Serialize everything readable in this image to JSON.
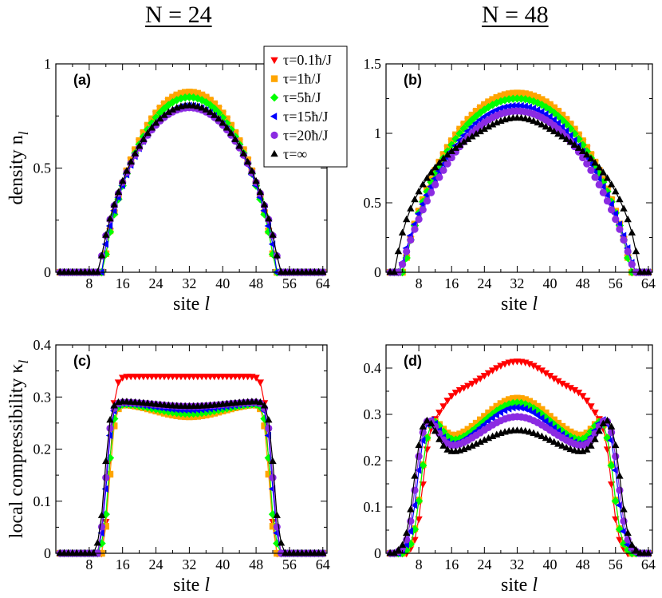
{
  "headers": {
    "left": "N = 24",
    "right": "N = 48"
  },
  "colors": {
    "tau01": "#ff0000",
    "tau1": "#ffa500",
    "tau5": "#00ff00",
    "tau15": "#0000ff",
    "tau20": "#8b2be2",
    "tauinf": "#000000"
  },
  "legend": [
    {
      "key": "tau01",
      "label": "τ=0.1ħ/J",
      "marker": "tri-down"
    },
    {
      "key": "tau1",
      "label": "τ=1ħ/J",
      "marker": "square"
    },
    {
      "key": "tau5",
      "label": "τ=5ħ/J",
      "marker": "diamond"
    },
    {
      "key": "tau15",
      "label": "τ=15ħ/J",
      "marker": "tri-left"
    },
    {
      "key": "tau20",
      "label": "τ=20ħ/J",
      "marker": "circle"
    },
    {
      "key": "tauinf",
      "label": "τ=∞",
      "marker": "tri-up"
    }
  ],
  "chart_data": [
    {
      "id": "a",
      "panel_label": "(a)",
      "type": "line",
      "xlabel": "site",
      "xlabel_var": "l",
      "ylabel": "density n",
      "ylabel_sub": "l",
      "xlim": [
        0,
        65
      ],
      "ylim": [
        0,
        1
      ],
      "xticks": [
        8,
        16,
        24,
        32,
        40,
        48,
        56,
        64
      ],
      "yticks": [
        0,
        0.5,
        1
      ],
      "ytick_labels": [
        "0",
        "0.5",
        "1"
      ],
      "series": [
        {
          "key": "tau01",
          "model": "flat",
          "x0": 32,
          "w": 20.5,
          "peak": 0.86,
          "power": 1.0
        },
        {
          "key": "tau1",
          "model": "flat",
          "x0": 32,
          "w": 20.5,
          "peak": 0.865,
          "power": 1.0
        },
        {
          "key": "tau5",
          "model": "flat",
          "x0": 32,
          "w": 20.5,
          "peak": 0.84,
          "power": 1.0
        },
        {
          "key": "tau15",
          "model": "flat",
          "x0": 32,
          "w": 21.0,
          "peak": 0.8,
          "power": 1.0
        },
        {
          "key": "tau20",
          "model": "flat",
          "x0": 32,
          "w": 21.5,
          "peak": 0.79,
          "power": 1.0
        },
        {
          "key": "tauinf",
          "model": "flat",
          "x0": 32,
          "w": 21.5,
          "peak": 0.8,
          "power": 1.0
        }
      ]
    },
    {
      "id": "b",
      "panel_label": "(b)",
      "type": "line",
      "xlabel": "site",
      "xlabel_var": "l",
      "ylabel": "",
      "ylabel_sub": "",
      "xlim": [
        0,
        65
      ],
      "ylim": [
        0,
        1.5
      ],
      "xticks": [
        8,
        16,
        24,
        32,
        40,
        48,
        56,
        64
      ],
      "yticks": [
        0,
        0.5,
        1,
        1.5
      ],
      "ytick_labels": [
        "0",
        "0.5",
        "1",
        "1.5"
      ],
      "series": [
        {
          "key": "tau01",
          "model": "flat",
          "x0": 32,
          "w": 27.5,
          "peak": 1.28,
          "power": 1.0
        },
        {
          "key": "tau1",
          "model": "flat",
          "x0": 32,
          "w": 27.5,
          "peak": 1.29,
          "power": 1.0
        },
        {
          "key": "tau5",
          "model": "flat",
          "x0": 32,
          "w": 27.5,
          "peak": 1.25,
          "power": 1.0
        },
        {
          "key": "tau15",
          "model": "flat",
          "x0": 32,
          "w": 28.5,
          "peak": 1.2,
          "power": 1.2
        },
        {
          "key": "tau20",
          "model": "flat",
          "x0": 32,
          "w": 28.5,
          "peak": 1.16,
          "power": 1.3
        },
        {
          "key": "tauinf",
          "model": "plateau",
          "x0": 32,
          "w": 29.5,
          "peak": 1.11,
          "plateau": 1.0
        }
      ]
    },
    {
      "id": "c",
      "panel_label": "(c)",
      "type": "line",
      "xlabel": "site",
      "xlabel_var": "l",
      "ylabel": "local compressibility  κ",
      "ylabel_sub": "l",
      "xlim": [
        0,
        65
      ],
      "ylim": [
        0,
        0.4
      ],
      "xticks": [
        8,
        16,
        24,
        32,
        40,
        48,
        56,
        64
      ],
      "yticks": [
        0,
        0.1,
        0.2,
        0.3,
        0.4
      ],
      "ytick_labels": [
        "0",
        "0.1",
        "0.2",
        "0.3",
        "0.4"
      ],
      "series": [
        {
          "key": "tau01",
          "model": "mesa",
          "x0": 32,
          "w": 20.5,
          "edge": 0.34,
          "center": 0.34
        },
        {
          "key": "tau1",
          "model": "mesa",
          "x0": 32,
          "w": 20.5,
          "edge": 0.29,
          "center": 0.262
        },
        {
          "key": "tau5",
          "model": "mesa",
          "x0": 32,
          "w": 20.8,
          "edge": 0.29,
          "center": 0.268
        },
        {
          "key": "tau15",
          "model": "mesa",
          "x0": 32,
          "w": 21.3,
          "edge": 0.291,
          "center": 0.275
        },
        {
          "key": "tau20",
          "model": "mesa",
          "x0": 32,
          "w": 21.5,
          "edge": 0.292,
          "center": 0.282
        },
        {
          "key": "tauinf",
          "model": "mesa",
          "x0": 32,
          "w": 21.8,
          "edge": 0.293,
          "center": 0.282
        }
      ]
    },
    {
      "id": "d",
      "panel_label": "(d)",
      "type": "line",
      "xlabel": "site",
      "xlabel_var": "l",
      "ylabel": "",
      "ylabel_sub": "",
      "xlim": [
        0,
        65
      ],
      "ylim": [
        0,
        0.45
      ],
      "xticks": [
        8,
        16,
        24,
        32,
        40,
        48,
        56,
        64
      ],
      "yticks": [
        0,
        0.1,
        0.2,
        0.3,
        0.4
      ],
      "ytick_labels": [
        "0",
        "0.1",
        "0.2",
        "0.3",
        "0.4"
      ],
      "series": [
        {
          "key": "tau01",
          "model": "hump",
          "x0": 32,
          "w": 26.0,
          "edge": 0.3,
          "center": 0.415,
          "ridge": 0.34
        },
        {
          "key": "tau1",
          "model": "hump",
          "x0": 32,
          "w": 27.0,
          "edge": 0.29,
          "center": 0.335,
          "ridge": 0.235
        },
        {
          "key": "tau5",
          "model": "hump",
          "x0": 32,
          "w": 27.0,
          "edge": 0.29,
          "center": 0.325,
          "ridge": 0.225
        },
        {
          "key": "tau15",
          "model": "hump",
          "x0": 32,
          "w": 28.0,
          "edge": 0.295,
          "center": 0.315,
          "ridge": 0.215
        },
        {
          "key": "tau20",
          "model": "hump",
          "x0": 32,
          "w": 28.5,
          "edge": 0.295,
          "center": 0.295,
          "ridge": 0.215
        },
        {
          "key": "tauinf",
          "model": "hump",
          "x0": 32,
          "w": 29.0,
          "edge": 0.295,
          "center": 0.265,
          "ridge": 0.205
        }
      ]
    }
  ]
}
